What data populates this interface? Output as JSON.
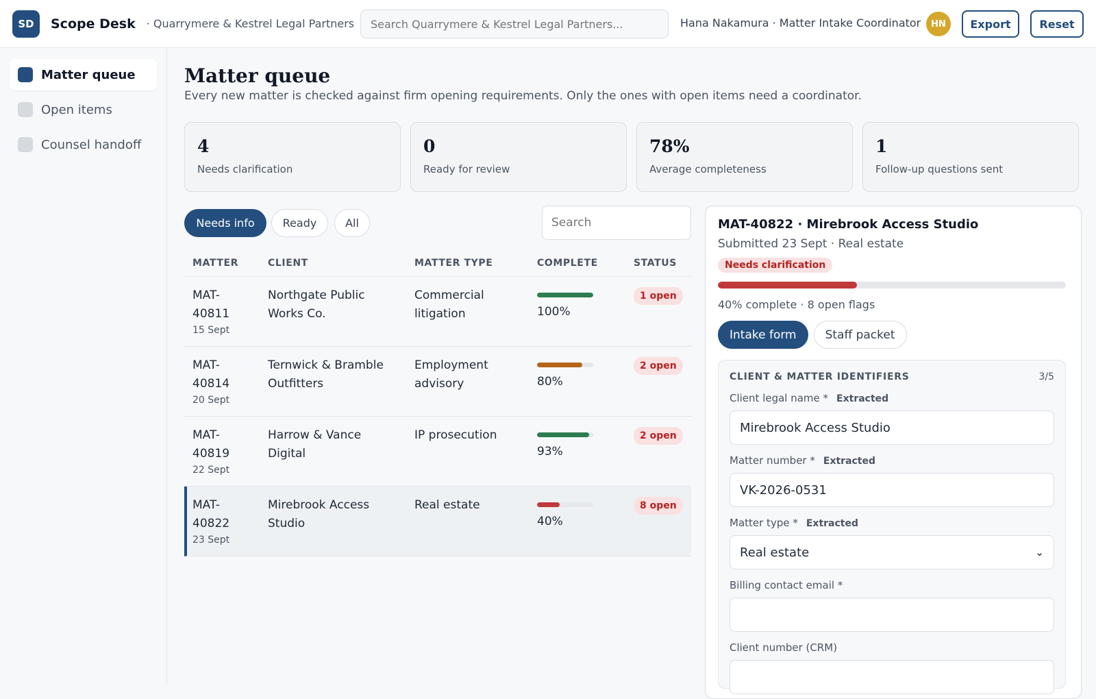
{
  "topbar": {
    "logo": "SD",
    "app_name": "Scope Desk",
    "firm_name": "· Quarrymere & Kestrel Legal Partners",
    "search_placeholder": "Search Quarrymere & Kestrel Legal Partners...",
    "user_label": "Hana Nakamura · Matter Intake Coordinator",
    "avatar": "HN",
    "export_label": "Export",
    "reset_label": "Reset"
  },
  "sidebar": {
    "items": [
      {
        "label": "Matter queue",
        "active": true
      },
      {
        "label": "Open items",
        "active": false
      },
      {
        "label": "Counsel handoff",
        "active": false
      }
    ]
  },
  "page": {
    "title": "Matter queue",
    "subtitle": "Every new matter is checked against firm opening requirements. Only the ones with open items need a coordinator."
  },
  "stats": [
    {
      "value": "4",
      "label": "Needs clarification"
    },
    {
      "value": "0",
      "label": "Ready for review"
    },
    {
      "value": "78%",
      "label": "Average completeness"
    },
    {
      "value": "1",
      "label": "Follow-up questions sent"
    }
  ],
  "filters": {
    "chips": [
      "Needs info",
      "Ready",
      "All"
    ],
    "active": "Needs info",
    "search_placeholder": "Search"
  },
  "table": {
    "headers": [
      "MATTER",
      "CLIENT",
      "MATTER TYPE",
      "COMPLETE",
      "STATUS"
    ],
    "rows": [
      {
        "matter_a": "MAT-",
        "matter_b": "40811",
        "date": "15 Sept",
        "client": "Northgate Public Works Co.",
        "type": "Commercial litigation",
        "complete": 100,
        "complete_label": "100%",
        "bar_color": "#2e7d4f",
        "status": "1 open",
        "selected": false
      },
      {
        "matter_a": "MAT-",
        "matter_b": "40814",
        "date": "20 Sept",
        "client": "Ternwick & Bramble Outfitters",
        "type": "Employment advisory",
        "complete": 80,
        "complete_label": "80%",
        "bar_color": "#b8651b",
        "status": "2 open",
        "selected": false
      },
      {
        "matter_a": "MAT-",
        "matter_b": "40819",
        "date": "22 Sept",
        "client": "Harrow & Vance Digital",
        "type": "IP prosecution",
        "complete": 93,
        "complete_label": "93%",
        "bar_color": "#2e7d4f",
        "status": "2 open",
        "selected": false
      },
      {
        "matter_a": "MAT-",
        "matter_b": "40822",
        "date": "23 Sept",
        "client": "Mirebrook Access Studio",
        "type": "Real estate",
        "complete": 40,
        "complete_label": "40%",
        "bar_color": "#c0393b",
        "status": "8 open",
        "selected": true
      }
    ]
  },
  "detail": {
    "title": "MAT-40822 · Mirebrook Access Studio",
    "subtitle": "Submitted 23 Sept · Real estate",
    "badge": "Needs clarification",
    "progress": 40,
    "meta": "40% complete · 8 open flags",
    "tabs": [
      "Intake form",
      "Staff packet"
    ],
    "active_tab": "Intake form",
    "section": {
      "title": "CLIENT & MATTER IDENTIFIERS",
      "count": "3/5",
      "fields": [
        {
          "label": "Client legal name *",
          "tag": "Extracted",
          "value": "Mirebrook Access Studio",
          "kind": "text"
        },
        {
          "label": "Matter number *",
          "tag": "Extracted",
          "value": "VK-2026-0531",
          "kind": "text"
        },
        {
          "label": "Matter type *",
          "tag": "Extracted",
          "value": "Real estate",
          "kind": "select"
        },
        {
          "label": "Billing contact email *",
          "tag": "",
          "value": "",
          "kind": "text"
        },
        {
          "label": "Client number (CRM)",
          "tag": "",
          "value": "",
          "kind": "text"
        }
      ]
    }
  },
  "colors": {
    "brand": "#234e7e",
    "danger": "#c0393b",
    "success": "#2e7d4f",
    "warning": "#b8651b",
    "avatar": "#d4a72c"
  }
}
